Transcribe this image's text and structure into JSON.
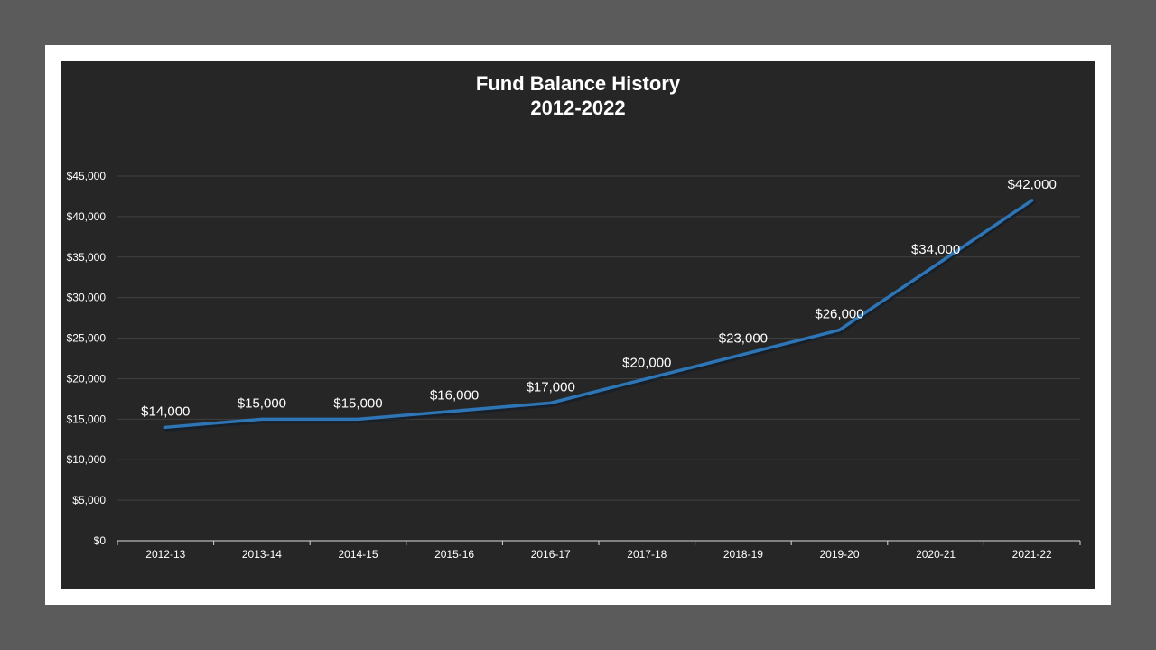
{
  "chart_data": {
    "type": "line",
    "title_lines": [
      "Fund Balance History",
      "2012-2022"
    ],
    "categories": [
      "2012-13",
      "2013-14",
      "2014-15",
      "2015-16",
      "2016-17",
      "2017-18",
      "2018-19",
      "2019-20",
      "2020-21",
      "2021-22"
    ],
    "series": [
      {
        "values": [
          14000,
          15000,
          15000,
          16000,
          17000,
          20000,
          23000,
          26000,
          34000,
          42000
        ],
        "labels": [
          "$14,000",
          "$15,000",
          "$15,000",
          "$16,000",
          "$17,000",
          "$20,000",
          "$23,000",
          "$26,000",
          "$34,000",
          "$42,000"
        ]
      }
    ],
    "y_ticks": [
      0,
      5000,
      10000,
      15000,
      20000,
      25000,
      30000,
      35000,
      40000,
      45000
    ],
    "y_tick_labels": [
      "$0",
      "$5,000",
      "$10,000",
      "$15,000",
      "$20,000",
      "$25,000",
      "$30,000",
      "$35,000",
      "$40,000",
      "$45,000"
    ],
    "ylim": [
      0,
      45000
    ],
    "grid": true,
    "legend": "none",
    "colors": {
      "line": "#2e75b6",
      "background": "#262626",
      "frame": "#ffffff",
      "outer": "#5b5b5b",
      "gridline": "#404040",
      "text": "#ffffff"
    }
  }
}
